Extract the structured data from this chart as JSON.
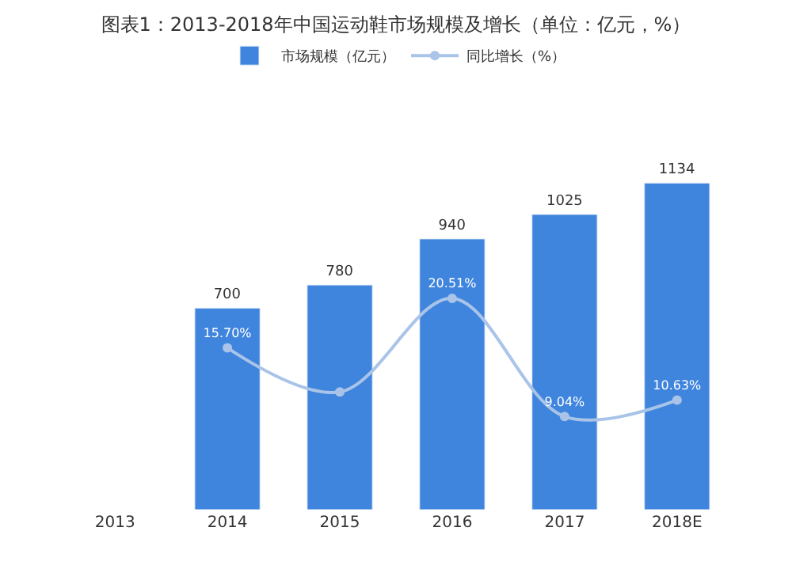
{
  "chart_data": {
    "type": "bar",
    "title": "图表1：2013-2018年中国运动鞋市场规模及增长（单位：亿元，%）",
    "categories": [
      "2013",
      "2014",
      "2015",
      "2016",
      "2017",
      "2018E"
    ],
    "series": [
      {
        "name": "市场规模（亿元）",
        "color": "#3f85dd",
        "values": [
          null,
          700,
          780,
          940,
          1025,
          1134
        ],
        "value_labels": [
          null,
          "700",
          "780",
          "940",
          "1025",
          "1134"
        ]
      },
      {
        "name": "同比增长（%）",
        "type": "line",
        "axis": "y2",
        "color": "#a9c4e8",
        "marker": "circle",
        "values": [
          null,
          15.7,
          11.43,
          20.51,
          9.04,
          10.63
        ],
        "value_labels": [
          null,
          "15.70%",
          null,
          "20.51%",
          "9.04%",
          "10.63%"
        ]
      }
    ],
    "tick_labels": "x",
    "legend": "top"
  }
}
